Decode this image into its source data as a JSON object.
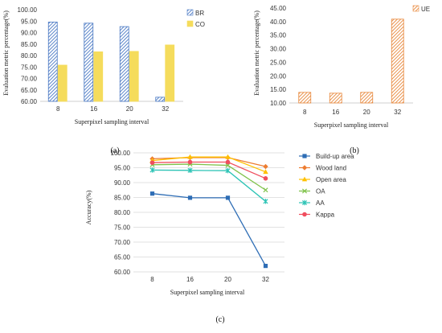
{
  "chart_data": [
    {
      "id": "a",
      "type": "bar",
      "panel_label": "(a)",
      "categories": [
        "8",
        "16",
        "20",
        "32"
      ],
      "series": [
        {
          "name": "BR",
          "values": [
            94.6,
            94.1,
            92.6,
            61.8
          ],
          "color": "#4a79c4",
          "pattern": "diagonal-hatch"
        },
        {
          "name": "CO",
          "values": [
            75.8,
            81.6,
            81.8,
            84.6
          ],
          "color": "#f5dc5c",
          "pattern": "solid"
        }
      ],
      "xlabel": "Superpixel sampling interval",
      "ylabel": "Evaluation metric percentage(%)",
      "ylim": [
        60,
        100
      ],
      "yticks": [
        "60.00",
        "65.00",
        "70.00",
        "75.00",
        "80.00",
        "85.00",
        "90.00",
        "95.00",
        "100.00"
      ],
      "grid": false,
      "legend": "right"
    },
    {
      "id": "b",
      "type": "bar",
      "panel_label": "(b)",
      "categories": [
        "8",
        "16",
        "20",
        "32"
      ],
      "series": [
        {
          "name": "UE",
          "values": [
            13.9,
            13.6,
            13.9,
            40.9
          ],
          "color": "#e8873a",
          "pattern": "diagonal-hatch"
        }
      ],
      "xlabel": "Superpixel sampling interval",
      "ylabel": "Evaluation metric percentage(%)",
      "ylim": [
        10,
        45
      ],
      "yticks": [
        "10.00",
        "15.00",
        "20.00",
        "25.00",
        "30.00",
        "35.00",
        "40.00",
        "45.00"
      ],
      "grid": false,
      "legend": "top-right"
    },
    {
      "id": "c",
      "type": "line",
      "panel_label": "(c)",
      "categories": [
        "8",
        "16",
        "20",
        "32"
      ],
      "series": [
        {
          "name": "Build-up area",
          "values": [
            86.3,
            84.9,
            84.9,
            62.0
          ],
          "color": "#2e6db5",
          "marker": "square"
        },
        {
          "name": "Wood land",
          "values": [
            98.0,
            98.4,
            98.4,
            95.4
          ],
          "color": "#ed7d31",
          "marker": "diamond"
        },
        {
          "name": "Open area",
          "values": [
            97.4,
            98.6,
            98.6,
            93.6
          ],
          "color": "#ffc000",
          "marker": "triangle"
        },
        {
          "name": "OA",
          "values": [
            96.0,
            96.2,
            95.8,
            87.5
          ],
          "color": "#7fc24a",
          "marker": "x"
        },
        {
          "name": "AA",
          "values": [
            94.2,
            94.1,
            94.0,
            83.7
          ],
          "color": "#2ec4b6",
          "marker": "star"
        },
        {
          "name": "Kappa",
          "values": [
            96.7,
            96.9,
            96.9,
            91.4
          ],
          "color": "#f04e5e",
          "marker": "circle"
        }
      ],
      "xlabel": "Superpixel sampling interval",
      "ylabel": "Accuracy(%)",
      "ylim": [
        60,
        100
      ],
      "yticks": [
        "60.00",
        "65.00",
        "70.00",
        "75.00",
        "80.00",
        "85.00",
        "90.00",
        "95.00",
        "100.00"
      ],
      "grid": true,
      "legend": "right"
    }
  ]
}
